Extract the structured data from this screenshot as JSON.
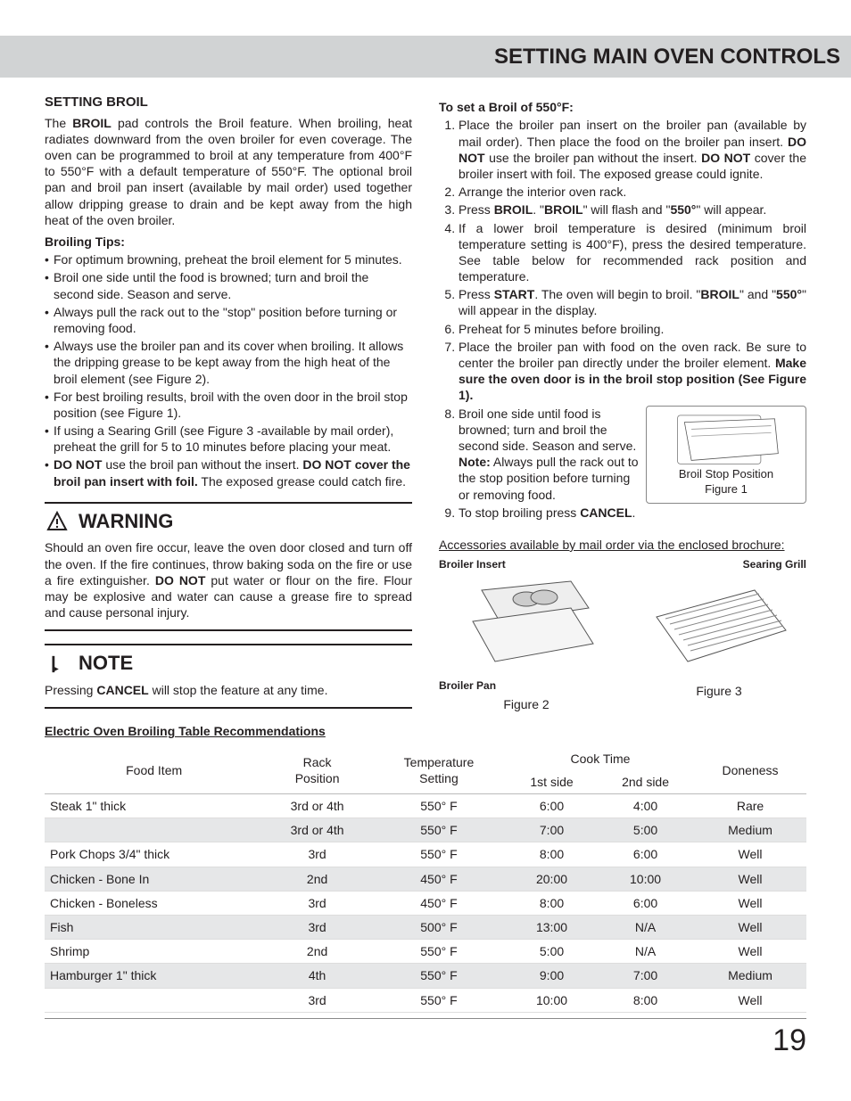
{
  "page": {
    "header_title": "SETTING MAIN OVEN CONTROLS",
    "page_number": "19"
  },
  "left": {
    "section_title": "SETTING BROIL",
    "intro_pre": "The ",
    "intro_bold1": "BROIL",
    "intro_post": " pad controls the Broil feature. When broiling, heat radiates downward from the oven broiler for even coverage. The oven can be programmed to broil at any temperature from 400°F to 550°F with a default temperature of 550°F. The optional broil pan and broil pan insert (available by mail order) used together allow dripping grease to drain and be kept away from the high heat of the oven broiler.",
    "tips_title": "Broiling Tips:",
    "tips": [
      {
        "text": "For optimum browning, preheat the broil element for 5 minutes."
      },
      {
        "text": "Broil one side until the food is browned; turn and broil the second side. Season and serve."
      },
      {
        "text": "Always pull the rack out to the \"stop\" position before turning or removing food."
      },
      {
        "text": "Always use the broiler pan and its cover when broiling. It allows the dripping grease to be kept away from the high heat of the broil element (see Figure 2)."
      },
      {
        "text": "For best broiling results, broil with the oven door in the broil stop position (see Figure 1)."
      },
      {
        "text": "If using a Searing Grill (see Figure 3 -available by mail order), preheat the grill for 5 to 10 minutes before placing your meat."
      },
      {
        "pre": "",
        "b1": "DO NOT",
        "mid": " use the broil pan without the insert. ",
        "b2": "DO NOT cover the broil pan insert with foil.",
        "post": " The exposed grease could catch fire."
      }
    ],
    "warning": {
      "title": "WARNING",
      "body_pre": "Should an oven fire occur, leave the oven door closed and turn off the oven. If the fire continues, throw baking soda on the fire or use a fire extinguisher. ",
      "body_bold": "DO NOT",
      "body_post": " put water or flour on the fire. Flour may be explosive and water can cause a grease fire to spread and cause personal injury."
    },
    "note": {
      "title": "NOTE",
      "body_pre": "Pressing ",
      "body_bold": "CANCEL",
      "body_post": " will stop the feature at any time."
    }
  },
  "right": {
    "steps_title": "To set a Broil of 550°F:",
    "steps": [
      {
        "pre": "Place the broiler pan insert on the broiler pan (available by mail order). Then place the food on the broiler pan insert. ",
        "b1": "DO NOT",
        "mid1": " use the broiler pan without the insert. ",
        "b2": "DO NOT",
        "post": " cover the broiler insert with foil. The exposed grease could ignite."
      },
      {
        "text": "Arrange the interior oven rack."
      },
      {
        "pre": "Press ",
        "b1": "BROIL",
        "mid1": ". \"",
        "b2": "BROIL",
        "mid2": "\" will flash and \"",
        "b3": "550°",
        "post": "\" will appear."
      },
      {
        "text": "If a lower broil temperature is desired (minimum broil temperature setting is 400°F), press the desired temperature. See table below for recommended rack position and temperature."
      },
      {
        "pre": "Press ",
        "b1": "START",
        "mid1": ". The oven will begin to broil. \"",
        "b2": "BROIL",
        "mid2": "\" and \"",
        "b3": "550°",
        "post": "\" will appear in the display."
      },
      {
        "text": "Preheat for 5 minutes before broiling."
      },
      {
        "pre": "Place the broiler pan with food on the oven rack. Be sure to center the broiler pan directly under the broiler element. ",
        "b1": "Make sure the oven door is in the broil stop position (See Figure 1).",
        "post": ""
      },
      {
        "pre": "Broil one side until food is browned; turn and broil the second side. Season and serve. ",
        "b1": "Note:",
        "post": " Always pull the rack out to the stop position before turning or removing food."
      },
      {
        "pre": "To stop broiling press ",
        "b1": "CANCEL",
        "post": "."
      }
    ],
    "fig1_caption1": "Broil Stop Position",
    "fig1_caption2": "Figure 1",
    "acc_title": "Accessories available by mail order via the enclosed brochure:",
    "acc": {
      "broiler_insert": "Broiler Insert",
      "searing_grill": "Searing Grill",
      "broiler_pan": "Broiler Pan",
      "fig2": "Figure 2",
      "fig3": "Figure 3"
    }
  },
  "table": {
    "title": "Electric Oven Broiling Table Recommendations",
    "headers": {
      "food": "Food Item",
      "rack1": "Rack",
      "rack2": "Position",
      "temp1": "Temperature",
      "temp2": "Setting",
      "cook": "Cook Time",
      "side1": "1st side",
      "side2": "2nd side",
      "done": "Doneness"
    },
    "rows": [
      {
        "food": "Steak 1\" thick",
        "rack": "3rd or 4th",
        "temp": "550° F",
        "s1": "6:00",
        "s2": "4:00",
        "done": "Rare",
        "shade": false
      },
      {
        "food": "",
        "rack": "3rd or 4th",
        "temp": "550° F",
        "s1": "7:00",
        "s2": "5:00",
        "done": "Medium",
        "shade": true
      },
      {
        "food": "Pork Chops 3/4\" thick",
        "rack": "3rd",
        "temp": "550° F",
        "s1": "8:00",
        "s2": "6:00",
        "done": "Well",
        "shade": false
      },
      {
        "food": "Chicken - Bone In",
        "rack": "2nd",
        "temp": "450° F",
        "s1": "20:00",
        "s2": "10:00",
        "done": "Well",
        "shade": true
      },
      {
        "food": "Chicken - Boneless",
        "rack": "3rd",
        "temp": "450° F",
        "s1": "8:00",
        "s2": "6:00",
        "done": "Well",
        "shade": false
      },
      {
        "food": "Fish",
        "rack": "3rd",
        "temp": "500° F",
        "s1": "13:00",
        "s2": "N/A",
        "done": "Well",
        "shade": true
      },
      {
        "food": "Shrimp",
        "rack": "2nd",
        "temp": "550° F",
        "s1": "5:00",
        "s2": "N/A",
        "done": "Well",
        "shade": false
      },
      {
        "food": "Hamburger 1\" thick",
        "rack": "4th",
        "temp": "550° F",
        "s1": "9:00",
        "s2": "7:00",
        "done": "Medium",
        "shade": true
      },
      {
        "food": "",
        "rack": "3rd",
        "temp": "550° F",
        "s1": "10:00",
        "s2": "8:00",
        "done": "Well",
        "shade": false
      }
    ]
  },
  "colors": {
    "band_bg": "#d1d3d4",
    "text": "#231f20",
    "row_shade": "#e6e7e8",
    "rule": "#888888"
  }
}
